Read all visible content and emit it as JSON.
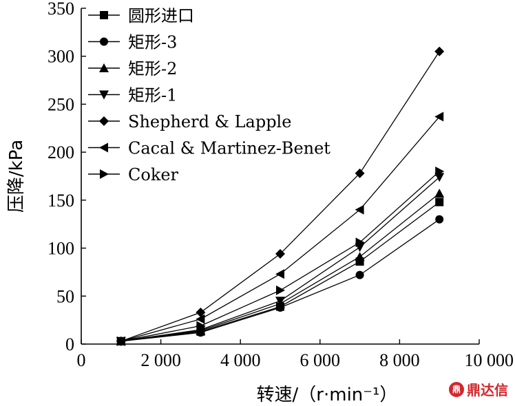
{
  "chart_data": {
    "type": "line",
    "xlabel": "转速/（r·min⁻¹）",
    "ylabel": "压降/kPa",
    "xlim": [
      0,
      10000
    ],
    "ylim": [
      0,
      350
    ],
    "xticks": [
      0,
      2000,
      4000,
      6000,
      8000,
      10000
    ],
    "xtick_labels": [
      "0",
      "2 000",
      "4 000",
      "6 000",
      "8 000",
      "10 000"
    ],
    "yticks": [
      0,
      50,
      100,
      150,
      200,
      250,
      300,
      350
    ],
    "ytick_labels": [
      "0",
      "50",
      "100",
      "150",
      "200",
      "250",
      "300",
      "350"
    ],
    "grid": false,
    "legend_position": "top-left",
    "x": [
      1000,
      3000,
      5000,
      7000,
      9000
    ],
    "series": [
      {
        "name": "圆形进口",
        "marker": "square",
        "values": [
          3,
          13,
          39,
          86,
          148
        ]
      },
      {
        "name": "矩形-3",
        "marker": "circle",
        "values": [
          3,
          12,
          38,
          72,
          130
        ]
      },
      {
        "name": "矩形-2",
        "marker": "triangle-up",
        "values": [
          3,
          14,
          42,
          91,
          157
        ]
      },
      {
        "name": "矩形-1",
        "marker": "triangle-down",
        "values": [
          3,
          15,
          45,
          101,
          174
        ]
      },
      {
        "name": "Shepherd & Lapple",
        "marker": "diamond",
        "values": [
          3,
          33,
          94,
          178,
          305
        ]
      },
      {
        "name": "Cacal & Martinez-Benet",
        "marker": "triangle-left",
        "values": [
          3,
          26,
          73,
          140,
          237
        ]
      },
      {
        "name": "Coker",
        "marker": "triangle-right",
        "values": [
          3,
          19,
          56,
          106,
          180
        ]
      }
    ]
  },
  "watermark": {
    "logo": "鼎",
    "text": "鼎达信"
  }
}
